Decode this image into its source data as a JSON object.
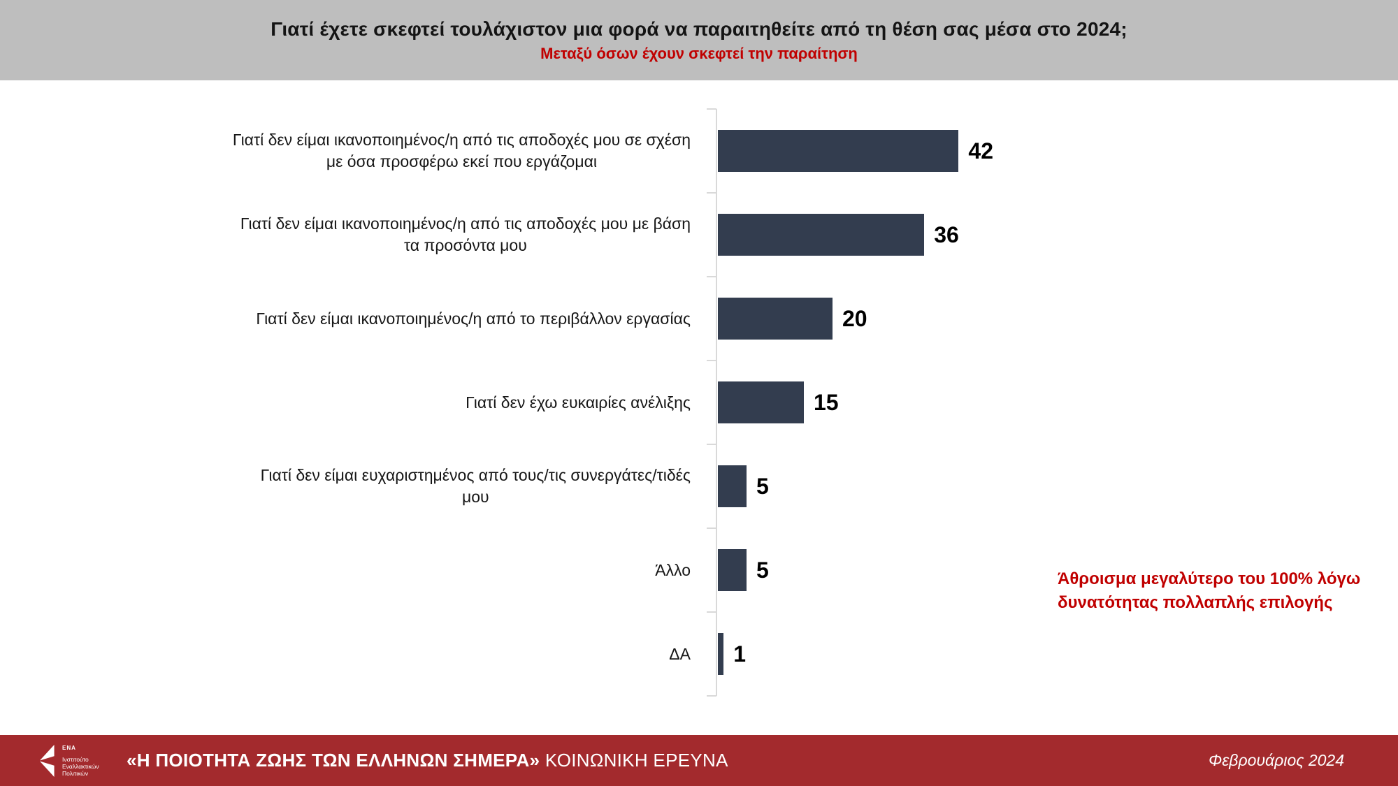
{
  "header": {
    "title": "Γιατί έχετε σκεφτεί τουλάχιστον μια φορά να παραιτηθείτε από τη θέση σας μέσα στο 2024;",
    "subtitle": "Μεταξύ όσων έχουν σκεφτεί την παραίτηση"
  },
  "chart_data": {
    "type": "bar",
    "orientation": "horizontal",
    "title": "Γιατί έχετε σκεφτεί τουλάχιστον μια φορά να παραιτηθείτε από τη θέση σας μέσα στο 2024;",
    "subtitle": "Μεταξύ όσων έχουν σκεφτεί την παραίτηση",
    "categories": [
      "Γιατί δεν είμαι ικανοποιημένος/η από τις αποδοχές μου σε σχέση με όσα προσφέρω εκεί που εργάζομαι",
      "Γιατί δεν είμαι ικανοποιημένος/η από τις αποδοχές μου με βάση τα προσόντα μου",
      "Γιατί δεν είμαι ικανοποιημένος/η από το περιβάλλον εργασίας",
      "Γιατί δεν έχω ευκαιρίες ανέλιξης",
      "Γιατί δεν είμαι ευχαριστημένος από τους/τις συνεργάτες/τιδές μου",
      "Άλλο",
      "ΔΑ"
    ],
    "label_lines": [
      [
        "Γιατί δεν είμαι ικανοποιημένος/η από τις αποδοχές μου σε σχέση",
        "με όσα προσφέρω εκεί που εργάζομαι"
      ],
      [
        "Γιατί δεν είμαι ικανοποιημένος/η από τις αποδοχές μου με βάση",
        "τα προσόντα μου"
      ],
      [
        "Γιατί δεν είμαι ικανοποιημένος/η από το περιβάλλον εργασίας"
      ],
      [
        "Γιατί δεν έχω ευκαιρίες ανέλιξης"
      ],
      [
        "Γιατί δεν είμαι ευχαριστημένος από τους/τις συνεργάτες/τιδές",
        "μου"
      ],
      [
        "Άλλο"
      ],
      [
        "ΔΑ"
      ]
    ],
    "values": [
      42,
      36,
      20,
      15,
      5,
      5,
      1
    ],
    "value_labels": true,
    "xlim": [
      0,
      50
    ],
    "grid": false,
    "legend": "none",
    "bar_color": "#333D4F",
    "axis_color": "#D9D9D9"
  },
  "annotation": {
    "text": "Άθροισμα μεγαλύτερο του 100% λόγω\nδυνατότητας πολλαπλής επιλογής",
    "color": "#C00000"
  },
  "footer": {
    "logo_acronym": "ΕΝΑ",
    "logo_institute": "Ινστιτούτο\nΕναλλακτικών\nΠολιτικών",
    "survey_title": "«Η ΠΟΙΟΤΗΤΑ ΖΩΗΣ ΤΩΝ ΕΛΛΗΝΩΝ ΣΗΜΕΡΑ»",
    "survey_subtitle": " ΚΟΙΝΩΝΙΚΗ ΕΡΕΥΝΑ",
    "date": "Φεβρουάριος 2024"
  },
  "colors": {
    "header_bg": "#BEBEBE",
    "footer_bg": "#A32A2D",
    "accent_red": "#C00000",
    "bar": "#333D4F",
    "axis": "#D9D9D9"
  }
}
